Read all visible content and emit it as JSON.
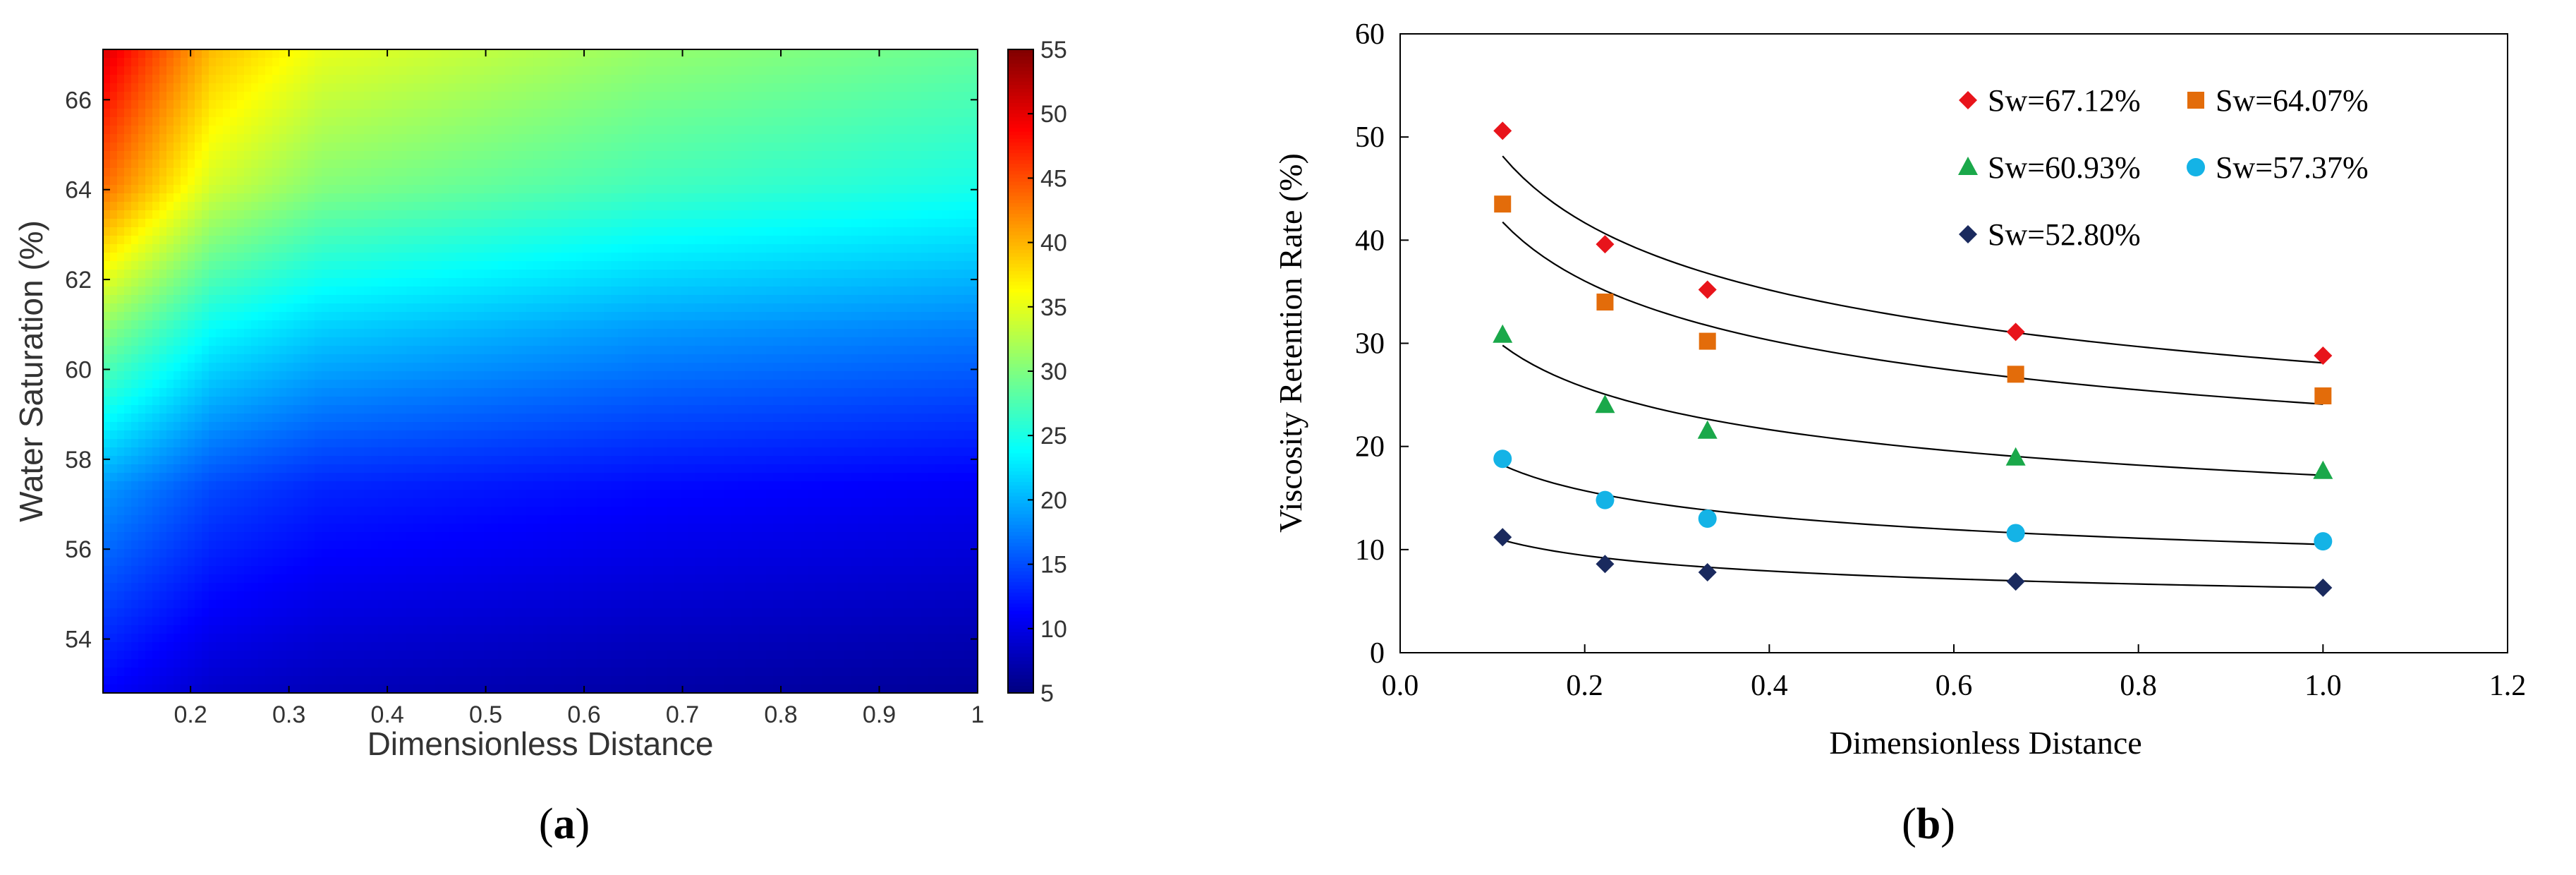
{
  "chart_data": [
    {
      "type": "heatmap",
      "panel_label": "a",
      "xlabel": "Dimensionless Distance",
      "ylabel": "Water Saturation (%)",
      "xlim": [
        0.111,
        1.0
      ],
      "ylim": [
        52.8,
        67.12
      ],
      "xticks": [
        0.2,
        0.3,
        0.4,
        0.5,
        0.6,
        0.7,
        0.8,
        0.9,
        1.0
      ],
      "xtick_labels": [
        "0.2",
        "0.3",
        "0.4",
        "0.5",
        "0.6",
        "0.7",
        "0.8",
        "0.9",
        "1"
      ],
      "yticks": [
        54,
        56,
        58,
        60,
        62,
        64,
        66
      ],
      "ytick_labels": [
        "54",
        "56",
        "58",
        "60",
        "62",
        "64",
        "66"
      ],
      "colorbar": {
        "range": [
          5,
          55
        ],
        "ticks": [
          5,
          10,
          15,
          20,
          25,
          30,
          35,
          40,
          45,
          50,
          55
        ],
        "tick_labels": [
          "5",
          "10",
          "15",
          "20",
          "25",
          "30",
          "35",
          "40",
          "45",
          "50",
          "55"
        ],
        "colormap": "jet"
      },
      "grid_x": [
        0.111,
        0.222,
        0.333,
        0.667,
        1.0
      ],
      "grid_y": [
        52.8,
        57.37,
        60.93,
        64.07,
        67.12
      ],
      "z": [
        [
          11.2,
          8.6,
          7.8,
          6.9,
          6.3
        ],
        [
          18.8,
          14.8,
          13.0,
          11.6,
          10.8
        ],
        [
          30.8,
          24.0,
          21.5,
          18.9,
          17.6
        ],
        [
          43.5,
          34.0,
          30.2,
          27.0,
          24.9
        ],
        [
          50.6,
          39.6,
          35.2,
          31.1,
          28.8
        ]
      ]
    },
    {
      "type": "scatter",
      "panel_label": "b",
      "xlabel": "Dimensionless Distance",
      "ylabel": "Viscosity Retention Rate (%)",
      "xlim": [
        0.0,
        1.2
      ],
      "ylim": [
        0,
        60
      ],
      "xticks": [
        0.0,
        0.2,
        0.4,
        0.6,
        0.8,
        1.0,
        1.2
      ],
      "xtick_labels": [
        "0.0",
        "0.2",
        "0.4",
        "0.6",
        "0.8",
        "1.0",
        "1.2"
      ],
      "yticks": [
        0,
        10,
        20,
        30,
        40,
        50,
        60
      ],
      "ytick_labels": [
        "0",
        "10",
        "20",
        "30",
        "40",
        "50",
        "60"
      ],
      "legend_position": "top-right",
      "series": [
        {
          "name": "Sw=67.12%",
          "marker": "diamond",
          "color": "#e8141b",
          "x": [
            0.111,
            0.222,
            0.333,
            0.667,
            1.0
          ],
          "y": [
            50.6,
            39.6,
            35.2,
            31.1,
            28.8
          ],
          "fit": {
            "type": "power",
            "a": 28.1,
            "b": -0.245
          }
        },
        {
          "name": "Sw=64.07%",
          "marker": "square",
          "color": "#e36c0a",
          "x": [
            0.111,
            0.222,
            0.333,
            0.667,
            1.0
          ],
          "y": [
            43.5,
            34.0,
            30.2,
            27.0,
            24.9
          ],
          "fit": {
            "type": "power",
            "a": 24.1,
            "b": -0.25
          }
        },
        {
          "name": "Sw=60.93%",
          "marker": "triangle",
          "color": "#1aa84a",
          "x": [
            0.111,
            0.222,
            0.333,
            0.667,
            1.0
          ],
          "y": [
            30.8,
            24.0,
            21.5,
            18.9,
            17.6
          ],
          "fit": {
            "type": "power",
            "a": 17.2,
            "b": -0.25
          }
        },
        {
          "name": "Sw=57.37%",
          "marker": "circle",
          "color": "#14b3e6",
          "x": [
            0.111,
            0.222,
            0.333,
            0.667,
            1.0
          ],
          "y": [
            18.8,
            14.8,
            13.0,
            11.6,
            10.8
          ],
          "fit": {
            "type": "power",
            "a": 10.5,
            "b": -0.25
          }
        },
        {
          "name": "Sw=52.80%",
          "marker": "diamond",
          "color": "#1a2a5e",
          "x": [
            0.111,
            0.222,
            0.333,
            0.667,
            1.0
          ],
          "y": [
            11.2,
            8.6,
            7.8,
            6.9,
            6.3
          ],
          "fit": {
            "type": "power",
            "a": 6.3,
            "b": -0.25
          }
        }
      ]
    }
  ],
  "captions": {
    "a": "a",
    "b": "b",
    "open": "(",
    "close": ")"
  }
}
